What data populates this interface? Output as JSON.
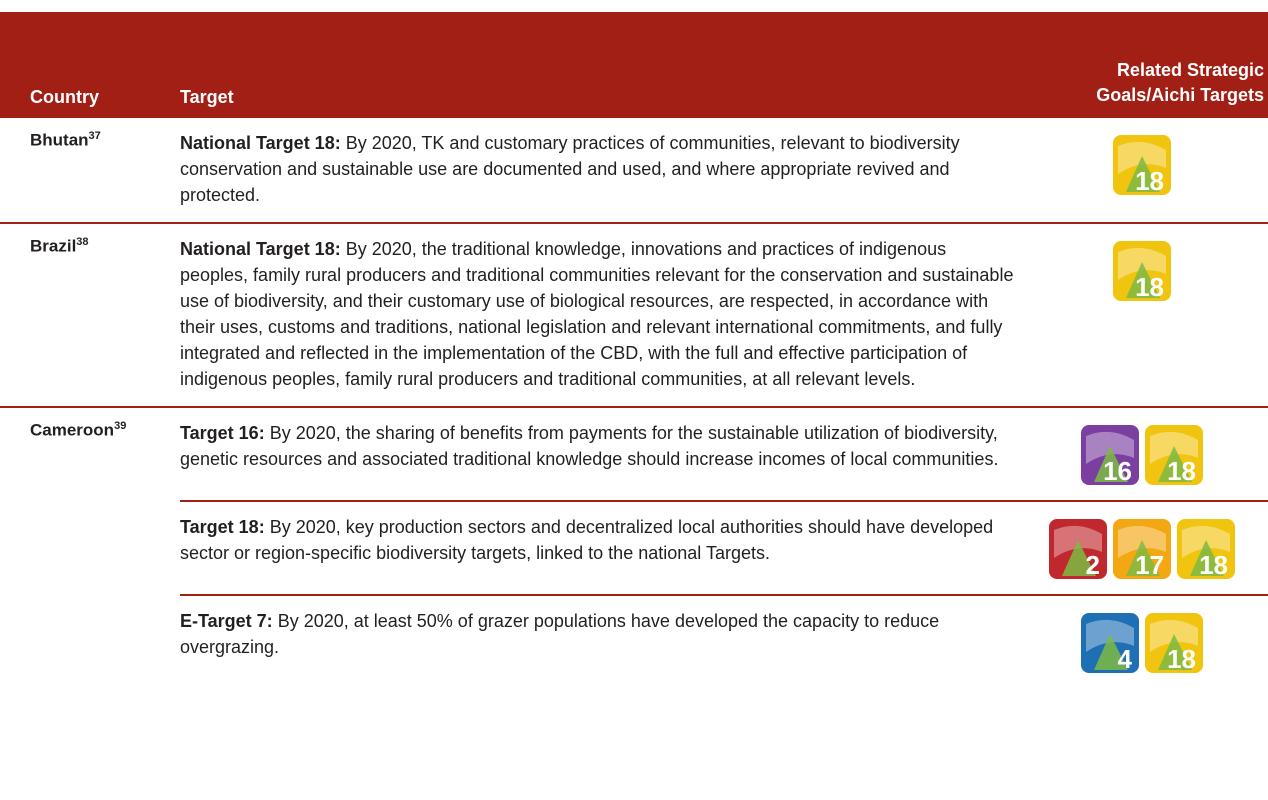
{
  "header": {
    "country": "Country",
    "target": "Target",
    "related": "Related Strategic Goals/Aichi Targets"
  },
  "rows": [
    {
      "country": "Bhutan",
      "note": "37",
      "entries": [
        {
          "label": "National Target 18:",
          "text": " By 2020, TK and customary practices of communities, relevant to biodiversity conservation and sustainable use are documented and used, and where appropriate revived and protected.",
          "icons": [
            {
              "number": 18,
              "color": "#f1c40f"
            }
          ]
        }
      ]
    },
    {
      "country": "Brazil",
      "note": "38",
      "entries": [
        {
          "label": "National Target 18:",
          "text": " By 2020, the traditional knowledge, innovations and practices of indigenous peoples, family rural producers and traditional communities relevant for the conservation and sustainable use of biodiversity, and their customary use of biological resources, are respected, in accordance with their uses, customs and traditions, national legislation and relevant international commitments, and fully integrated and reflected in the implementation of the CBD, with the full and effective participation of indigenous peoples, family rural producers and traditional communities, at all relevant levels.",
          "icons": [
            {
              "number": 18,
              "color": "#f1c40f"
            }
          ]
        }
      ]
    },
    {
      "country": "Cameroon",
      "note": "39",
      "entries": [
        {
          "label": "Target 16:",
          "text": " By 2020, the sharing of benefits from payments for the sustainable utilization of biodiversity, genetic resources and associated traditional knowledge should increase incomes of local communities.",
          "icons": [
            {
              "number": 16,
              "color": "#7b3fa0"
            },
            {
              "number": 18,
              "color": "#f1c40f"
            }
          ]
        },
        {
          "label": "Target 18:",
          "text": " By 2020, key production sectors and decentralized local authorities should have developed sector or region-specific biodiversity targets, linked to the national Targets.",
          "icons": [
            {
              "number": 2,
              "color": "#c0282d"
            },
            {
              "number": 17,
              "color": "#f3a712"
            },
            {
              "number": 18,
              "color": "#f1c40f"
            }
          ]
        },
        {
          "label": "E-Target 7:",
          "text": " By 2020, at least 50% of grazer populations have developed the capacity to reduce overgrazing.",
          "icons": [
            {
              "number": 4,
              "color": "#1f6fb5"
            },
            {
              "number": 18,
              "color": "#f1c40f"
            }
          ]
        }
      ]
    }
  ]
}
